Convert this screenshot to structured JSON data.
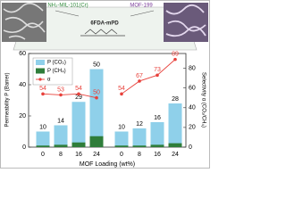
{
  "chart_data": {
    "type": "bar",
    "annotations": [
      "NH₂-MIL-101(Cr)",
      "6FDA-mPD",
      "MOF-199"
    ],
    "xlabel": "MOF Loading (wt%)",
    "ylabel": "Permeability P (Barrer)",
    "y2label": "Selectivity α (CO₂/CH₄)",
    "categories": [
      "0",
      "8",
      "16",
      "24",
      "0",
      "8",
      "16",
      "24"
    ],
    "series": [
      {
        "name": "P (CO₂)",
        "color": "#8fd0ea",
        "values": [
          10,
          14,
          29,
          50,
          10,
          12,
          16,
          28
        ]
      },
      {
        "name": "P (CH₄)",
        "color": "#2f7d3a",
        "values": [
          1,
          1.5,
          3,
          7,
          1,
          1,
          1.5,
          2.5
        ]
      },
      {
        "name": "α",
        "color": "#e8413b",
        "axis": "y2",
        "values": [
          54,
          53,
          54,
          50,
          54,
          67,
          73,
          89
        ]
      }
    ],
    "ylim": [
      0,
      60
    ],
    "yticks": [
      0,
      20,
      40,
      60
    ],
    "y2lim": [
      0,
      95
    ],
    "y2ticks": [
      0,
      20,
      40,
      60,
      80
    ],
    "legend": "upper-left"
  }
}
